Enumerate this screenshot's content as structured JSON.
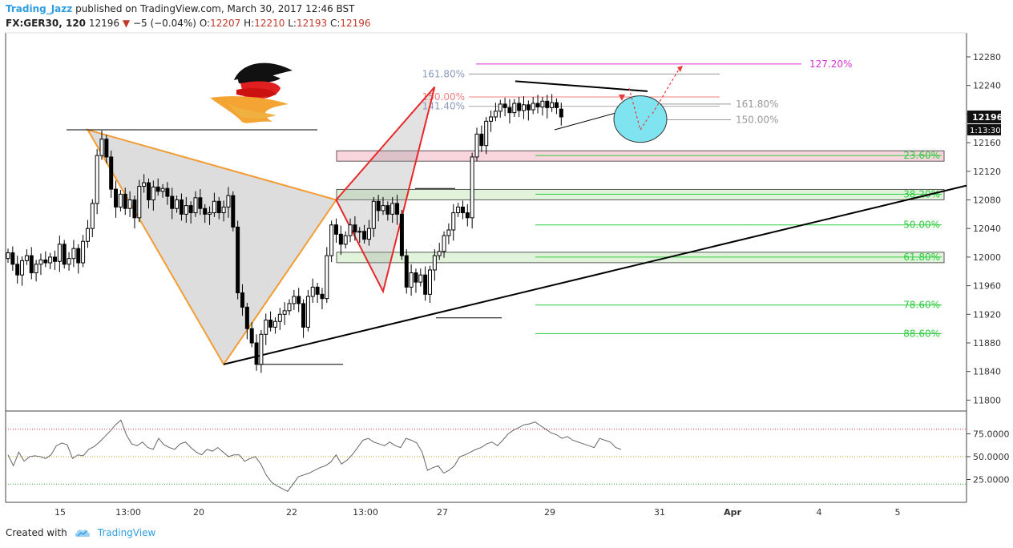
{
  "header": {
    "author": "Trading_Jazz",
    "published": " published on TradingView.com, March 30, 2017 12:46 BST",
    "symbol": "FX:GER30, 120",
    "last": "12196",
    "change_arrow": "▼",
    "change": "−5 (−0.04%)",
    "open_label": "O:",
    "open": "12207",
    "high_label": "H:",
    "high": "12210",
    "low_label": "L:",
    "low": "12193",
    "close_label": "C:",
    "close": "12196"
  },
  "footer": {
    "created_with": "Created with",
    "brand": "TradingView"
  },
  "colors": {
    "accent": "#2f9de0",
    "down": "#c0392b",
    "fib_pink": "#d633d6",
    "fib_green": "#2ecc40",
    "harmonic_orange": "#f39c33",
    "harmonic_red": "#e8272a",
    "target_circle": "#7fe3f0"
  },
  "chart_data": [
    {
      "type": "candlestick",
      "x_tick_labels": [
        "15",
        "13:00",
        "20",
        "22",
        "13:00",
        "27",
        "29",
        "31",
        "Apr",
        "4",
        "5"
      ],
      "y_ticks": [
        11800,
        11840,
        11880,
        11920,
        11960,
        12000,
        12040,
        12080,
        12120,
        12160,
        12200,
        12240,
        12280
      ],
      "ylim": [
        11780,
        12305
      ],
      "price_label": "12196",
      "countdown_label": "1:13:30",
      "candles": [
        {
          "o": 11998,
          "c": 12006
        },
        {
          "o": 12006,
          "c": 11990
        },
        {
          "o": 11990,
          "c": 11975
        },
        {
          "o": 11975,
          "c": 11995
        },
        {
          "o": 11995,
          "c": 12002
        },
        {
          "o": 12002,
          "c": 11978
        },
        {
          "o": 11978,
          "c": 11990
        },
        {
          "o": 11990,
          "c": 11996
        },
        {
          "o": 11996,
          "c": 11992
        },
        {
          "o": 11992,
          "c": 12000
        },
        {
          "o": 12000,
          "c": 11994
        },
        {
          "o": 11994,
          "c": 12018
        },
        {
          "o": 12018,
          "c": 11990
        },
        {
          "o": 11990,
          "c": 11998
        },
        {
          "o": 11998,
          "c": 12012
        },
        {
          "o": 12012,
          "c": 11992
        },
        {
          "o": 11992,
          "c": 12022
        },
        {
          "o": 12022,
          "c": 12040
        },
        {
          "o": 12040,
          "c": 12075
        },
        {
          "o": 12075,
          "c": 12142
        },
        {
          "o": 12142,
          "c": 12165
        },
        {
          "o": 12165,
          "c": 12140
        },
        {
          "o": 12140,
          "c": 12095
        },
        {
          "o": 12095,
          "c": 12070
        },
        {
          "o": 12070,
          "c": 12088
        },
        {
          "o": 12088,
          "c": 12068
        },
        {
          "o": 12068,
          "c": 12080
        },
        {
          "o": 12080,
          "c": 12055
        },
        {
          "o": 12055,
          "c": 12099
        },
        {
          "o": 12099,
          "c": 12104
        },
        {
          "o": 12104,
          "c": 12080
        },
        {
          "o": 12080,
          "c": 12098
        },
        {
          "o": 12098,
          "c": 12092
        },
        {
          "o": 12092,
          "c": 12096
        },
        {
          "o": 12096,
          "c": 12085
        },
        {
          "o": 12085,
          "c": 12068
        },
        {
          "o": 12068,
          "c": 12080
        },
        {
          "o": 12080,
          "c": 12060
        },
        {
          "o": 12060,
          "c": 12072
        },
        {
          "o": 12072,
          "c": 12062
        },
        {
          "o": 12062,
          "c": 12083
        },
        {
          "o": 12083,
          "c": 12068
        },
        {
          "o": 12068,
          "c": 12060
        },
        {
          "o": 12060,
          "c": 12062
        },
        {
          "o": 12062,
          "c": 12078
        },
        {
          "o": 12078,
          "c": 12062
        },
        {
          "o": 12062,
          "c": 12070
        },
        {
          "o": 12070,
          "c": 12086
        },
        {
          "o": 12086,
          "c": 12042
        },
        {
          "o": 12042,
          "c": 11950
        },
        {
          "o": 11950,
          "c": 11930
        },
        {
          "o": 11930,
          "c": 11900
        },
        {
          "o": 11900,
          "c": 11880
        },
        {
          "o": 11880,
          "c": 11850
        },
        {
          "o": 11850,
          "c": 11892
        },
        {
          "o": 11892,
          "c": 11912
        },
        {
          "o": 11912,
          "c": 11902
        },
        {
          "o": 11902,
          "c": 11910
        },
        {
          "o": 11910,
          "c": 11920
        },
        {
          "o": 11920,
          "c": 11925
        },
        {
          "o": 11925,
          "c": 11935
        },
        {
          "o": 11935,
          "c": 11945
        },
        {
          "o": 11945,
          "c": 11935
        },
        {
          "o": 11935,
          "c": 11902
        },
        {
          "o": 11902,
          "c": 11945
        },
        {
          "o": 11945,
          "c": 11958
        },
        {
          "o": 11958,
          "c": 11948
        },
        {
          "o": 11948,
          "c": 11942
        },
        {
          "o": 11942,
          "c": 12002
        },
        {
          "o": 12002,
          "c": 12045
        },
        {
          "o": 12045,
          "c": 12032
        },
        {
          "o": 12032,
          "c": 12018
        },
        {
          "o": 12018,
          "c": 12030
        },
        {
          "o": 12030,
          "c": 12045
        },
        {
          "o": 12045,
          "c": 12035
        },
        {
          "o": 12035,
          "c": 12036
        },
        {
          "o": 12036,
          "c": 12025
        },
        {
          "o": 12025,
          "c": 12040
        },
        {
          "o": 12040,
          "c": 12078
        },
        {
          "o": 12078,
          "c": 12065
        },
        {
          "o": 12065,
          "c": 12072
        },
        {
          "o": 12072,
          "c": 12060
        },
        {
          "o": 12060,
          "c": 12075
        },
        {
          "o": 12075,
          "c": 12060
        },
        {
          "o": 12060,
          "c": 12002
        },
        {
          "o": 12002,
          "c": 11958
        },
        {
          "o": 11958,
          "c": 11978
        },
        {
          "o": 11978,
          "c": 11965
        },
        {
          "o": 11965,
          "c": 11975
        },
        {
          "o": 11975,
          "c": 11948
        },
        {
          "o": 11948,
          "c": 11982
        },
        {
          "o": 11982,
          "c": 12002
        },
        {
          "o": 12002,
          "c": 12008
        },
        {
          "o": 12008,
          "c": 12030
        },
        {
          "o": 12030,
          "c": 12038
        },
        {
          "o": 12038,
          "c": 12062
        },
        {
          "o": 12062,
          "c": 12070
        },
        {
          "o": 12070,
          "c": 12062
        },
        {
          "o": 12062,
          "c": 12055
        },
        {
          "o": 12055,
          "c": 12140
        },
        {
          "o": 12140,
          "c": 12172
        },
        {
          "o": 12172,
          "c": 12156
        },
        {
          "o": 12156,
          "c": 12190
        },
        {
          "o": 12190,
          "c": 12196
        },
        {
          "o": 12196,
          "c": 12204
        },
        {
          "o": 12204,
          "c": 12214
        },
        {
          "o": 12214,
          "c": 12209
        },
        {
          "o": 12209,
          "c": 12202
        },
        {
          "o": 12202,
          "c": 12215
        },
        {
          "o": 12215,
          "c": 12205
        },
        {
          "o": 12205,
          "c": 12213
        },
        {
          "o": 12213,
          "c": 12206
        },
        {
          "o": 12206,
          "c": 12215
        },
        {
          "o": 12215,
          "c": 12210
        },
        {
          "o": 12210,
          "c": 12218
        },
        {
          "o": 12218,
          "c": 12209
        },
        {
          "o": 12209,
          "c": 12216
        },
        {
          "o": 12216,
          "c": 12209
        },
        {
          "o": 12207,
          "c": 12196
        }
      ],
      "fib_levels": [
        {
          "label": "23.60%",
          "value": 12142,
          "zone": "pink"
        },
        {
          "label": "38.20%",
          "value": 12088,
          "zone": "green"
        },
        {
          "label": "50.00%",
          "value": 12045,
          "zone": ""
        },
        {
          "label": "61.80%",
          "value": 12000,
          "zone": "green"
        },
        {
          "label": "78.60%",
          "value": 11933,
          "zone": ""
        },
        {
          "label": "88.60%",
          "value": 11893,
          "zone": ""
        }
      ],
      "extension_levels": [
        {
          "label": "127.20%",
          "value": 12270,
          "color": "pink"
        },
        {
          "label": "161.80%",
          "value": 12256,
          "color": "gray"
        },
        {
          "label": "150.00%",
          "value": 12224,
          "color": "red"
        },
        {
          "label": "141.40%",
          "value": 12211,
          "color": "gray"
        },
        {
          "label": "161.80%",
          "value": 12214,
          "color": "gray"
        },
        {
          "label": "150.00%",
          "value": 12192,
          "color": "gray"
        }
      ],
      "harmonic_pattern_orange": [
        {
          "bar": 17,
          "price": 12178
        },
        {
          "bar": 46,
          "price": 11850
        },
        {
          "bar": 70,
          "price": 12080
        }
      ],
      "harmonic_pattern_red": [
        {
          "bar": 70,
          "price": 12080
        },
        {
          "bar": 80,
          "price": 11952
        },
        {
          "bar": 91,
          "price": 12238
        }
      ],
      "trendline_support": [
        {
          "bar": 46,
          "price": 11850
        },
        {
          "bar": 155,
          "price": 12100
        }
      ]
    },
    {
      "type": "line",
      "name": "",
      "y_ticks_labels": [
        "75.0000",
        "50.0000",
        "25.0000"
      ],
      "y_ticks": [
        75,
        50,
        25
      ],
      "ylim": [
        0,
        100
      ],
      "overbought": 80,
      "middle": 50,
      "oversold": 20,
      "values": [
        52,
        40,
        55,
        45,
        50,
        51,
        50,
        48,
        52,
        62,
        65,
        63,
        48,
        52,
        51,
        58,
        61,
        66,
        72,
        78,
        85,
        90,
        74,
        64,
        62,
        66,
        60,
        58,
        70,
        63,
        60,
        58,
        64,
        66,
        60,
        55,
        52,
        58,
        56,
        60,
        55,
        50,
        52,
        52,
        45,
        48,
        50,
        42,
        30,
        22,
        18,
        15,
        12,
        20,
        28,
        30,
        32,
        35,
        38,
        40,
        44,
        52,
        42,
        46,
        52,
        60,
        68,
        70,
        66,
        64,
        62,
        66,
        62,
        60,
        70,
        68,
        65,
        55,
        35,
        38,
        40,
        32,
        35,
        40,
        50,
        52,
        55,
        58,
        60,
        64,
        66,
        62,
        68,
        75,
        79,
        82,
        85,
        86,
        88,
        84,
        80,
        76,
        74,
        70,
        72,
        68,
        66,
        64,
        62,
        60,
        70,
        68,
        66,
        60,
        58
      ]
    }
  ]
}
